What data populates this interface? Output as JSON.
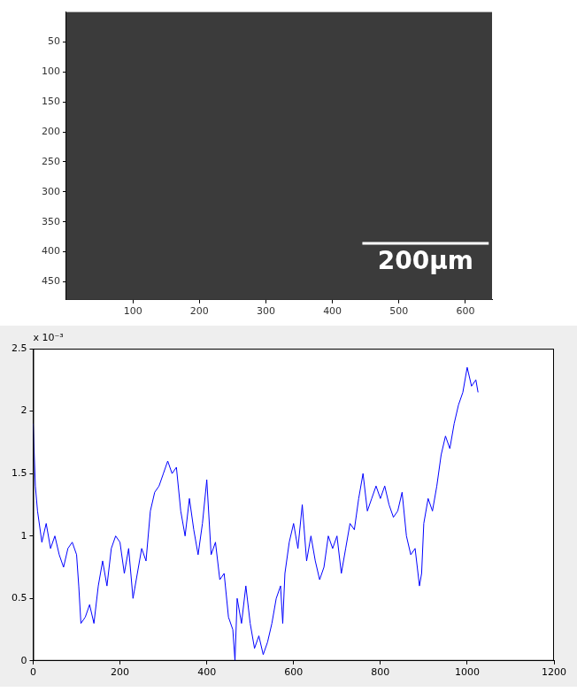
{
  "chart_data": [
    {
      "type": "image",
      "xlim": [
        0,
        640
      ],
      "ylim": [
        0,
        480
      ],
      "xticks": [
        100,
        200,
        300,
        400,
        500,
        600
      ],
      "yticks": [
        50,
        100,
        150,
        200,
        250,
        300,
        350,
        400,
        450
      ],
      "grid": false,
      "scale_bar": {
        "label": "200μm",
        "x": [
          445,
          635
        ],
        "y": 386
      }
    },
    {
      "type": "line",
      "color": "#0000ff",
      "grid": false,
      "y_multiplier": "x 10⁻³",
      "xlim": [
        0,
        1200
      ],
      "xticks": [
        0,
        200,
        400,
        600,
        800,
        1000,
        1200
      ],
      "ylim": [
        0,
        2.5
      ],
      "yticks": [
        0,
        0.5,
        1,
        1.5,
        2,
        2.5
      ],
      "x": [
        0,
        5,
        10,
        20,
        30,
        40,
        50,
        60,
        70,
        80,
        90,
        100,
        105,
        110,
        120,
        130,
        140,
        150,
        160,
        170,
        180,
        190,
        200,
        210,
        220,
        230,
        240,
        250,
        260,
        270,
        280,
        290,
        300,
        310,
        320,
        330,
        340,
        350,
        360,
        370,
        380,
        390,
        400,
        410,
        420,
        430,
        440,
        450,
        460,
        465,
        470,
        480,
        490,
        500,
        510,
        520,
        530,
        540,
        550,
        560,
        570,
        575,
        580,
        590,
        600,
        610,
        620,
        630,
        640,
        650,
        660,
        670,
        680,
        690,
        700,
        710,
        720,
        730,
        740,
        750,
        760,
        770,
        780,
        790,
        800,
        810,
        820,
        830,
        840,
        850,
        860,
        870,
        880,
        890,
        895,
        900,
        910,
        920,
        930,
        940,
        950,
        960,
        970,
        980,
        990,
        1000,
        1010,
        1020,
        1025
      ],
      "values": [
        1.9,
        1.4,
        1.2,
        0.95,
        1.1,
        0.9,
        1.0,
        0.85,
        0.75,
        0.9,
        0.95,
        0.85,
        0.6,
        0.3,
        0.35,
        0.45,
        0.3,
        0.6,
        0.8,
        0.6,
        0.9,
        1.0,
        0.95,
        0.7,
        0.9,
        0.5,
        0.7,
        0.9,
        0.8,
        1.2,
        1.35,
        1.4,
        1.5,
        1.6,
        1.5,
        1.55,
        1.2,
        1.0,
        1.3,
        1.05,
        0.85,
        1.1,
        1.45,
        0.85,
        0.95,
        0.65,
        0.7,
        0.35,
        0.25,
        0,
        0.5,
        0.3,
        0.6,
        0.3,
        0.1,
        0.2,
        0.05,
        0.15,
        0.3,
        0.5,
        0.6,
        0.3,
        0.7,
        0.95,
        1.1,
        0.9,
        1.25,
        0.8,
        1.0,
        0.8,
        0.65,
        0.75,
        1.0,
        0.9,
        1.0,
        0.7,
        0.9,
        1.1,
        1.05,
        1.3,
        1.5,
        1.2,
        1.3,
        1.4,
        1.3,
        1.4,
        1.25,
        1.15,
        1.2,
        1.35,
        1.0,
        0.85,
        0.9,
        0.6,
        0.7,
        1.1,
        1.3,
        1.2,
        1.4,
        1.65,
        1.8,
        1.7,
        1.9,
        2.05,
        2.15,
        2.35,
        2.2,
        2.25,
        2.15
      ]
    }
  ]
}
